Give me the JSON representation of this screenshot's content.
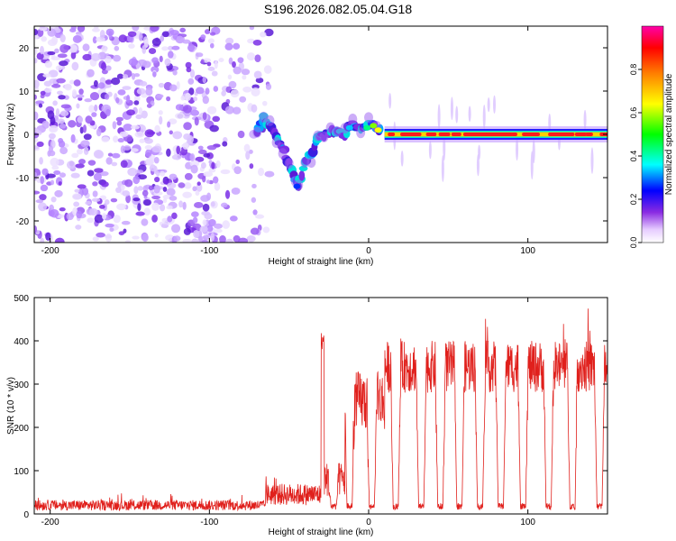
{
  "figure": {
    "title": "S196.2026.082.05.04.G18"
  },
  "chart_data": [
    {
      "type": "heatmap",
      "title": "S196.2026.082.05.04.G18",
      "xlabel": "Height of straight line (km)",
      "ylabel": "Frequency (Hz)",
      "xlim": [
        -210,
        150
      ],
      "ylim": [
        -25,
        25
      ],
      "xticks": [
        -200,
        -100,
        0,
        100
      ],
      "yticks": [
        -20,
        -10,
        0,
        10,
        20
      ],
      "colorbar": {
        "label": "Normalized spectral amplitude",
        "range": [
          0,
          1
        ],
        "ticks": [
          0.0,
          0.2,
          0.4,
          0.6,
          0.8
        ],
        "tick_labels": [
          "0.0",
          "0.2",
          "0.4",
          "0.6",
          "0.8"
        ]
      },
      "features": {
        "noise_region_x": [
          -210,
          -70
        ],
        "dispersive_track": [
          {
            "x": -70,
            "y": 0.5
          },
          {
            "x": -66,
            "y": 4
          },
          {
            "x": -62,
            "y": 2
          },
          {
            "x": -58,
            "y": -1
          },
          {
            "x": -54,
            "y": -3
          },
          {
            "x": -50,
            "y": -7
          },
          {
            "x": -46,
            "y": -10
          },
          {
            "x": -44,
            "y": -12
          },
          {
            "x": -40,
            "y": -6
          },
          {
            "x": -36,
            "y": -5
          },
          {
            "x": -32,
            "y": -1
          },
          {
            "x": -28,
            "y": 0
          },
          {
            "x": -24,
            "y": 0.5
          },
          {
            "x": -20,
            "y": 1
          },
          {
            "x": -15,
            "y": 0
          },
          {
            "x": -10,
            "y": 2.5
          },
          {
            "x": -5,
            "y": 1
          },
          {
            "x": 0,
            "y": 2.5
          },
          {
            "x": 5,
            "y": 1.5
          },
          {
            "x": 8,
            "y": 0.5
          }
        ],
        "steady_carrier": {
          "x_start": 10,
          "x_end": 150,
          "frequency_hz": 0,
          "amplitude": 0.95
        }
      }
    },
    {
      "type": "line",
      "xlabel": "Height of straight line (km)",
      "ylabel": "SNR (10 * v/v)",
      "xlim": [
        -210,
        150
      ],
      "ylim": [
        0,
        500
      ],
      "xticks": [
        -200,
        -100,
        0,
        100
      ],
      "yticks": [
        0,
        100,
        200,
        300,
        400,
        500
      ],
      "series": [
        {
          "name": "SNR",
          "color": "#e0201c",
          "segments": [
            {
              "x_start": -210,
              "x_end": -65,
              "level": 20,
              "noise": 12
            },
            {
              "x_start": -65,
              "x_end": -30,
              "level": 45,
              "noise": 25
            },
            {
              "x_start": -30,
              "x_end": -28,
              "level": 400,
              "noise": 20
            },
            {
              "x_start": -28,
              "x_end": -15,
              "level": 80,
              "noise": 40
            },
            {
              "x_start": -15,
              "x_end": 10,
              "level": 260,
              "noise": 70
            },
            {
              "x_start": 10,
              "x_end": 150,
              "level": 340,
              "noise": 60
            }
          ],
          "dropouts_x": [
            -22,
            -12,
            2,
            17,
            33,
            45,
            57,
            70,
            83,
            97,
            113,
            128,
            145
          ]
        }
      ]
    }
  ]
}
